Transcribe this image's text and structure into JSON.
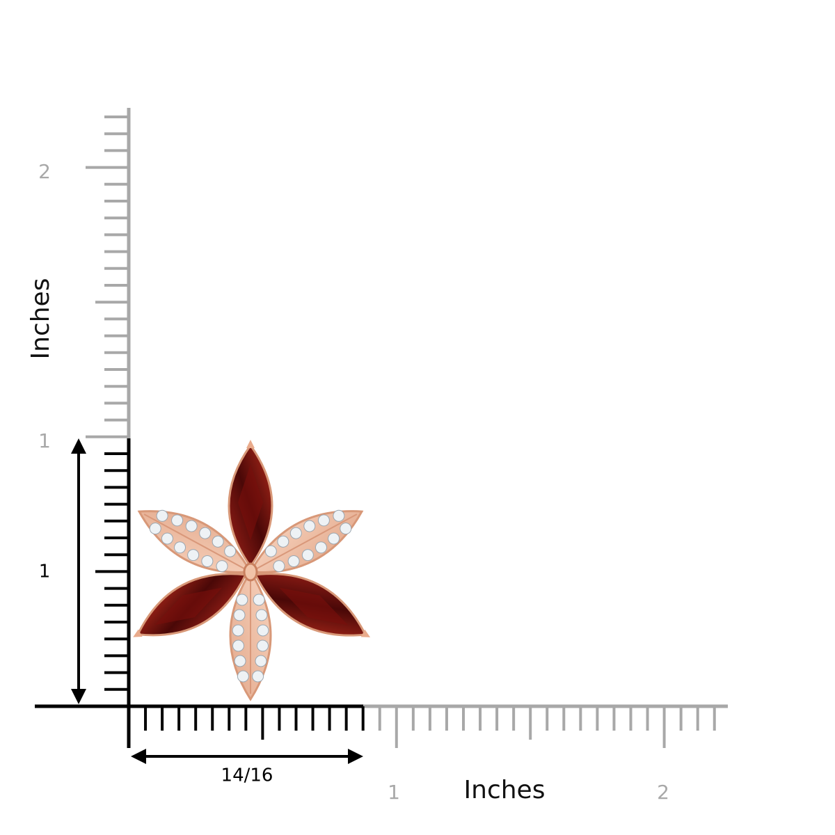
{
  "vertical_ruler": {
    "label": "Inches",
    "tick_labels": [
      "2",
      "1"
    ]
  },
  "horizontal_ruler": {
    "label": "Inches",
    "tick_labels": [
      "1",
      "2"
    ]
  },
  "dimensions": {
    "height": "1",
    "width": "14/16"
  }
}
